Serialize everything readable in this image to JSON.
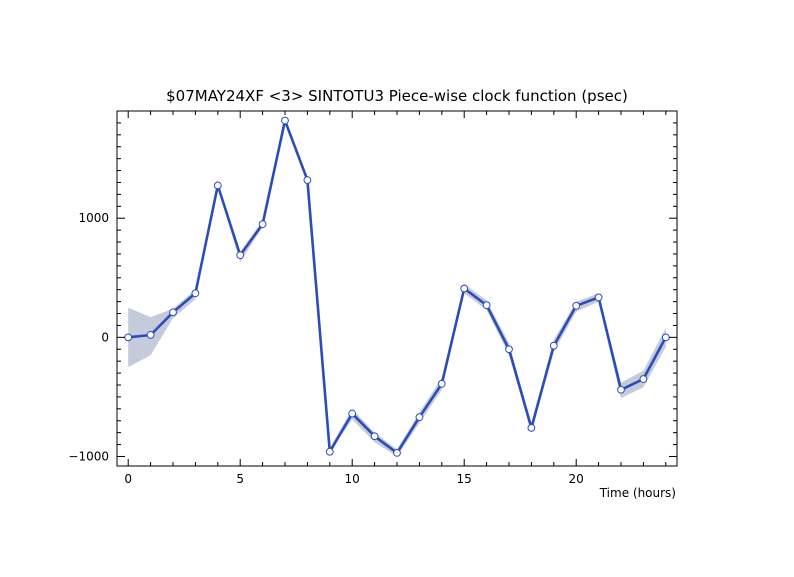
{
  "chart_data": {
    "type": "line",
    "title": "$07MAY24XF <3>  SINTOTU3  Piece-wise clock function (psec)",
    "xlabel": "Time (hours)",
    "ylabel": "",
    "xlim": [
      -0.5,
      24.5
    ],
    "ylim": [
      -1080,
      1900
    ],
    "x_ticks": [
      0,
      5,
      10,
      15,
      20
    ],
    "y_ticks": [
      -1000,
      0,
      1000
    ],
    "x_tick_labels": [
      "0",
      "5",
      "10",
      "15",
      "20"
    ],
    "y_tick_labels": [
      "−1000",
      "0",
      "1000"
    ],
    "grid": false,
    "legend": "none",
    "series": [
      {
        "x": [
          0,
          1,
          2,
          3,
          4,
          5,
          6,
          7,
          8,
          9,
          10,
          11,
          12,
          13,
          14,
          15,
          16,
          17,
          18,
          19,
          20,
          21,
          22,
          23,
          24
        ],
        "y": [
          0,
          20,
          210,
          370,
          1275,
          690,
          950,
          1820,
          1320,
          -960,
          -640,
          -830,
          -970,
          -670,
          -390,
          410,
          270,
          -100,
          -760,
          -70,
          265,
          335,
          -440,
          -350,
          0
        ],
        "band_lower": [
          -250,
          -150,
          160,
          320,
          1255,
          630,
          930,
          1790,
          1300,
          -960,
          -690,
          -880,
          -1000,
          -720,
          -440,
          370,
          230,
          -150,
          -800,
          -120,
          215,
          300,
          -510,
          -420,
          -80
        ],
        "band_upper": [
          250,
          170,
          240,
          400,
          1300,
          720,
          980,
          1840,
          1350,
          -930,
          -600,
          -800,
          -940,
          -630,
          -340,
          450,
          310,
          -50,
          -720,
          -20,
          300,
          370,
          -380,
          -280,
          80
        ]
      }
    ],
    "colors": {
      "line": "#2b4db8",
      "band": "#c6cbdc",
      "marker_fill": "#ffffff",
      "axis": "#000000"
    }
  }
}
